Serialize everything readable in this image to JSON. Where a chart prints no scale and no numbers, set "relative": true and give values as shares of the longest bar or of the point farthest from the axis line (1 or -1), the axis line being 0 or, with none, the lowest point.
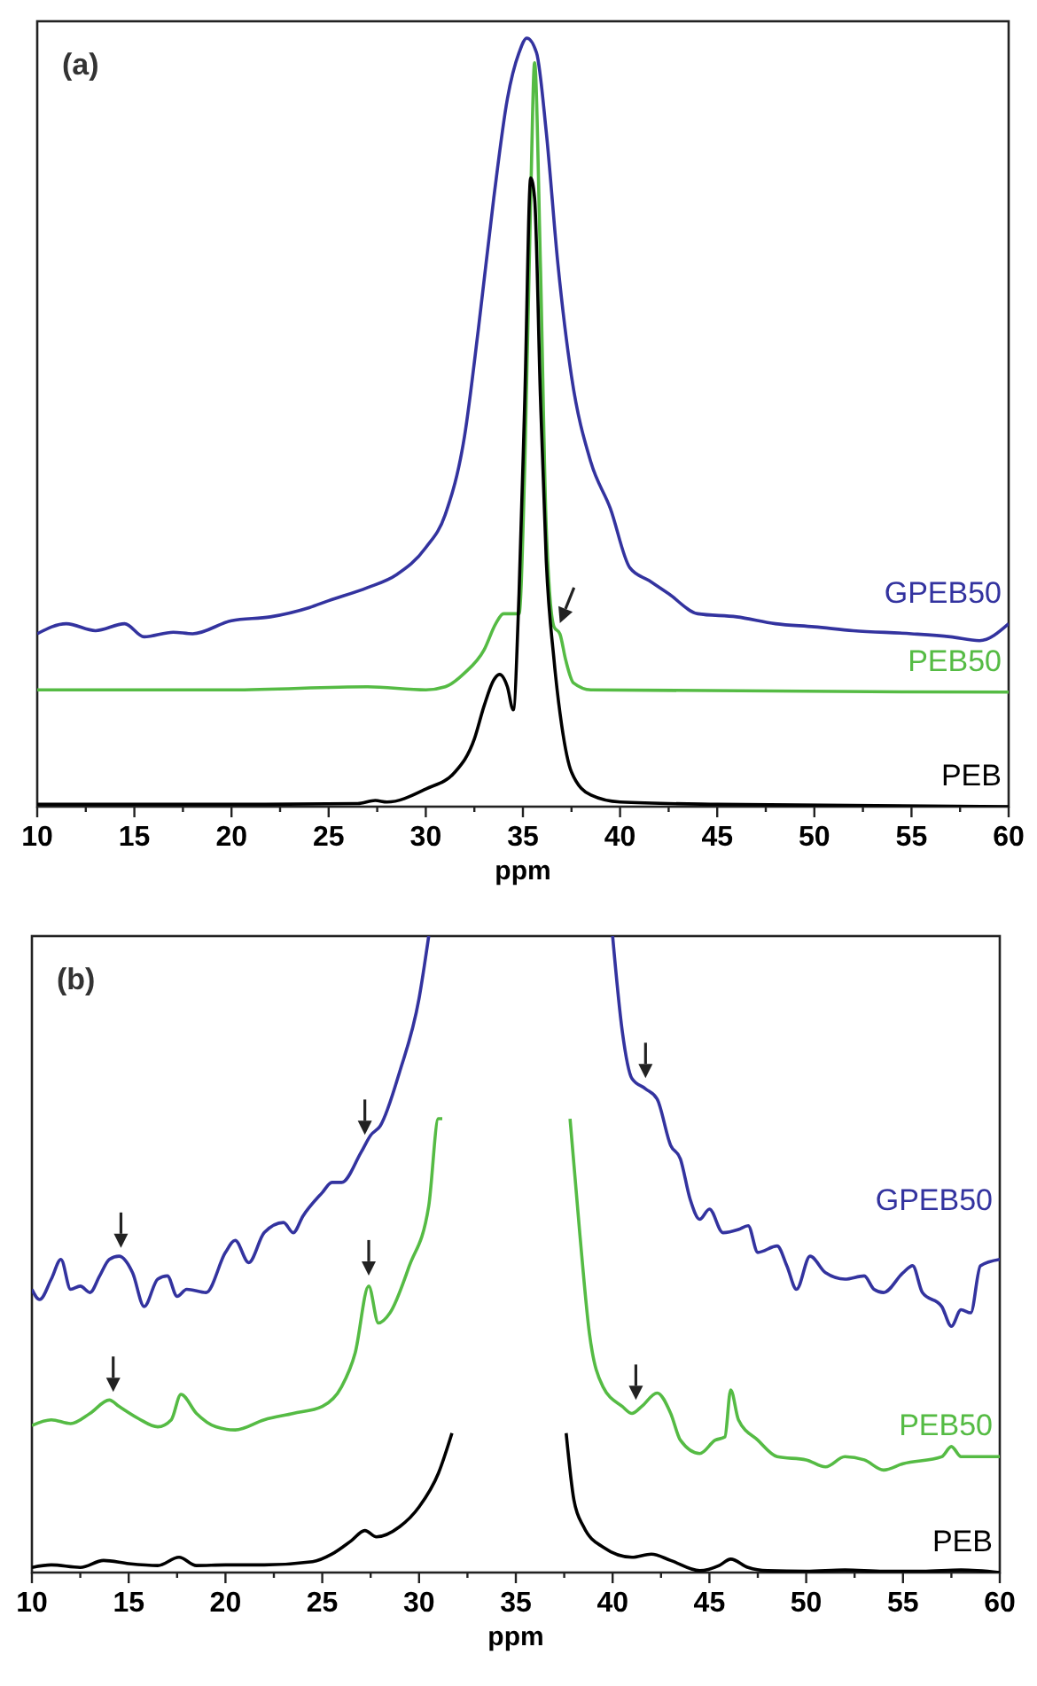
{
  "chart_data": [
    {
      "type": "line",
      "title": "(a)",
      "xlabel": "ppm",
      "relative": true,
      "legend": false,
      "xlim": [
        10,
        60
      ],
      "xticks": [
        10,
        {
          "value": 12.5,
          "label": null
        },
        15,
        {
          "value": 17.5,
          "label": null
        },
        20,
        {
          "value": 22.5,
          "label": null
        },
        25,
        {
          "value": 27.5,
          "label": null
        },
        30,
        {
          "value": 32.5,
          "label": null
        },
        35,
        {
          "value": 37.5,
          "label": null
        },
        40,
        {
          "value": 42.5,
          "label": null
        },
        45,
        {
          "value": 47.5,
          "label": null
        },
        50,
        {
          "value": 52.5,
          "label": null
        },
        55,
        {
          "value": 57.5,
          "label": null
        },
        60
      ],
      "series": [
        {
          "name": "GPEB50",
          "color": "#33339f",
          "x": [
            10,
            11.5,
            13,
            14.5,
            15.5,
            17,
            18,
            20,
            22,
            24,
            25,
            27,
            28.5,
            30,
            31,
            32,
            32.7,
            33.5,
            34.2,
            34.8,
            35.2,
            35.7,
            36.2,
            36.8,
            37.5,
            38.5,
            39.5,
            40.5,
            41.5,
            42.5,
            44,
            46,
            48,
            50,
            52,
            55,
            57,
            58.5,
            60
          ],
          "values": [
            0.225,
            0.238,
            0.229,
            0.238,
            0.221,
            0.227,
            0.225,
            0.242,
            0.247,
            0.259,
            0.268,
            0.285,
            0.302,
            0.337,
            0.38,
            0.483,
            0.62,
            0.792,
            0.921,
            0.981,
            1.0,
            0.981,
            0.878,
            0.706,
            0.56,
            0.448,
            0.388,
            0.311,
            0.294,
            0.277,
            0.251,
            0.247,
            0.238,
            0.234,
            0.229,
            0.225,
            0.221,
            0.216,
            0.238
          ]
        },
        {
          "name": "PEB50",
          "color": "#55bb44",
          "x": [
            10,
            20,
            27,
            30,
            31,
            32,
            33,
            33.6,
            34,
            34.8,
            35.1,
            35.4,
            35.6,
            35.9,
            36.2,
            36.6,
            36.9,
            37.2,
            37.6,
            38.5,
            60
          ],
          "values": [
            0.152,
            0.152,
            0.156,
            0.152,
            0.156,
            0.174,
            0.204,
            0.238,
            0.251,
            0.251,
            0.448,
            0.792,
            0.968,
            0.706,
            0.363,
            0.234,
            0.225,
            0.191,
            0.161,
            0.152,
            0.149
          ]
        },
        {
          "name": "PEB",
          "color": "#000000",
          "x": [
            10,
            20,
            26.5,
            27.4,
            28,
            30,
            31.5,
            32.5,
            33,
            33.5,
            33.8,
            34.2,
            34.5,
            34.8,
            35.1,
            35.4,
            35.6,
            35.9,
            36.2,
            36.6,
            37,
            37.5,
            38.5,
            40,
            45,
            60
          ],
          "values": [
            0.003,
            0.003,
            0.004,
            0.008,
            0.006,
            0.023,
            0.045,
            0.088,
            0.131,
            0.165,
            0.172,
            0.156,
            0.126,
            0.277,
            0.534,
            0.818,
            0.792,
            0.534,
            0.32,
            0.191,
            0.105,
            0.045,
            0.015,
            0.006,
            0.003,
            0.0
          ]
        }
      ]
    },
    {
      "type": "line",
      "title": "(b)",
      "xlabel": "ppm",
      "relative": true,
      "legend": false,
      "xlim": [
        10,
        60
      ],
      "xticks": [
        10,
        {
          "value": 12.5,
          "label": null
        },
        15,
        {
          "value": 17.5,
          "label": null
        },
        20,
        {
          "value": 22.5,
          "label": null
        },
        25,
        {
          "value": 27.5,
          "label": null
        },
        30,
        {
          "value": 32.5,
          "label": null
        },
        35,
        {
          "value": 37.5,
          "label": null
        },
        40,
        {
          "value": 42.5,
          "label": null
        },
        45,
        {
          "value": 47.5,
          "label": null
        },
        50,
        {
          "value": 52.5,
          "label": null
        },
        55,
        {
          "value": 57.5,
          "label": null
        },
        60
      ],
      "series": [
        {
          "name": "GPEB50",
          "color": "#33339f",
          "x": [
            10,
            10.4,
            11,
            11.5,
            12,
            12.5,
            13,
            13.5,
            14,
            14.5,
            15.2,
            15.8,
            16.5,
            17,
            17.5,
            18,
            19,
            20,
            20.5,
            21.2,
            22,
            23,
            23.5,
            24,
            25,
            25.5,
            26,
            27,
            27.5,
            28,
            29,
            30,
            30.5,
            35,
            40,
            40.5,
            41,
            41.7,
            42.3,
            43,
            43.5,
            44,
            44.5,
            45,
            45.7,
            46.5,
            47,
            47.5,
            48.5,
            49,
            49.5,
            50.2,
            51,
            52,
            53,
            53.5,
            54,
            55,
            55.5,
            56,
            57,
            57.5,
            58,
            58.5,
            59,
            60
          ],
          "values": [
            0.445,
            0.429,
            0.461,
            0.492,
            0.445,
            0.45,
            0.44,
            0.466,
            0.492,
            0.497,
            0.471,
            0.418,
            0.461,
            0.466,
            0.434,
            0.445,
            0.44,
            0.503,
            0.522,
            0.487,
            0.534,
            0.55,
            0.534,
            0.56,
            0.597,
            0.613,
            0.613,
            0.66,
            0.687,
            0.702,
            0.787,
            0.902,
            1.0,
            null,
            1.0,
            0.85,
            0.776,
            0.76,
            0.744,
            0.671,
            0.65,
            0.587,
            0.555,
            0.571,
            0.534,
            0.539,
            0.545,
            0.503,
            0.513,
            0.482,
            0.445,
            0.497,
            0.471,
            0.461,
            0.466,
            0.445,
            0.44,
            0.471,
            0.482,
            0.44,
            0.418,
            0.387,
            0.413,
            0.408,
            0.482,
            0.492
          ]
        },
        {
          "name": "PEB50",
          "color": "#55bb44",
          "x": [
            10,
            11,
            12,
            13,
            14,
            14.5,
            15.5,
            16.5,
            17.2,
            17.7,
            18.5,
            19.5,
            20.5,
            22,
            23.5,
            25,
            26,
            26.7,
            27.4,
            27.9,
            28.5,
            29.5,
            30.5,
            31,
            31.2,
            35,
            37.8,
            38.3,
            38.8,
            39.5,
            40.5,
            41,
            41.5,
            42.3,
            43,
            43.5,
            44.5,
            45.3,
            45.8,
            46.1,
            46.5,
            47.5,
            48.5,
            50,
            51,
            52,
            53,
            54,
            55,
            57,
            57.5,
            58,
            60
          ],
          "values": [
            0.231,
            0.24,
            0.234,
            0.25,
            0.271,
            0.261,
            0.242,
            0.229,
            0.24,
            0.28,
            0.25,
            0.229,
            0.224,
            0.24,
            0.25,
            0.261,
            0.292,
            0.345,
            0.45,
            0.392,
            0.408,
            0.482,
            0.576,
            0.713,
            0.713,
            null,
            0.713,
            0.534,
            0.376,
            0.292,
            0.261,
            0.25,
            0.261,
            0.282,
            0.25,
            0.208,
            0.187,
            0.208,
            0.213,
            0.287,
            0.24,
            0.208,
            0.182,
            0.177,
            0.166,
            0.182,
            0.177,
            0.161,
            0.171,
            0.182,
            0.198,
            0.182,
            0.182
          ]
        },
        {
          "name": "PEB",
          "color": "#000000",
          "x": [
            10,
            11,
            12.5,
            13.7,
            15,
            16.5,
            17.6,
            18.5,
            20,
            22,
            24.5,
            25.5,
            26.5,
            27.2,
            27.8,
            29,
            30,
            31,
            31.7,
            35,
            37.6,
            38,
            38.5,
            39.5,
            41,
            42,
            43,
            44.5,
            45.5,
            46.1,
            47,
            48,
            50,
            52,
            54,
            56,
            58,
            60
          ],
          "values": [
            0.008,
            0.012,
            0.008,
            0.019,
            0.014,
            0.011,
            0.024,
            0.011,
            0.012,
            0.012,
            0.017,
            0.029,
            0.05,
            0.066,
            0.056,
            0.072,
            0.103,
            0.156,
            0.219,
            null,
            0.219,
            0.114,
            0.072,
            0.04,
            0.024,
            0.029,
            0.019,
            0.003,
            0.011,
            0.021,
            0.008,
            0.003,
            0.002,
            0.004,
            0.002,
            0.002,
            0.004,
            0.0
          ]
        }
      ]
    }
  ]
}
